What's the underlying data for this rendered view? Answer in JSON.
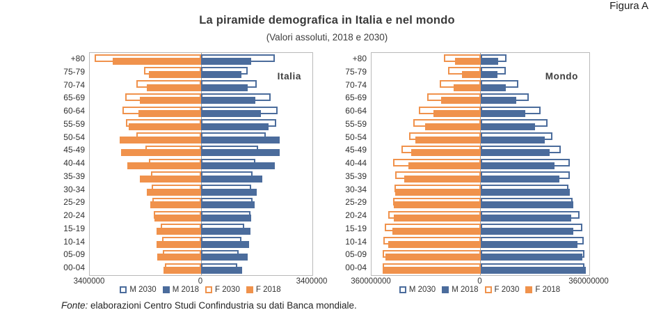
{
  "figure_label": "Figura A",
  "title": "La piramide demografica in Italia e nel mondo",
  "subtitle": "(Valori assoluti, 2018 e 2030)",
  "source": {
    "prefix": "Fonte:",
    "text": " elaborazioni Centro Studi Confindustria su dati Banca mondiale."
  },
  "colors": {
    "male": "#4b6c9c",
    "female": "#f0924c",
    "plot_border": "#b9b9b9",
    "center_axis": "#9d9d9d",
    "text": "#333333"
  },
  "legend": [
    {
      "label": "M 2030",
      "color": "male",
      "fill": "outline"
    },
    {
      "label": "M 2018",
      "color": "male",
      "fill": "solid"
    },
    {
      "label": "F 2030",
      "color": "female",
      "fill": "outline"
    },
    {
      "label": "F 2018",
      "color": "female",
      "fill": "solid"
    }
  ],
  "chart_data": [
    {
      "type": "bar",
      "variant": "population-pyramid",
      "title": "Italia",
      "age_groups": [
        "+80",
        "75-79",
        "70-74",
        "65-69",
        "60-64",
        "55-59",
        "50-54",
        "45-49",
        "40-44",
        "35-39",
        "30-34",
        "25-29",
        "20-24",
        "15-19",
        "10-14",
        "05-09",
        "00-04"
      ],
      "axis_max": 3400000,
      "x_tick_labels": [
        "3400000",
        "0",
        "3400000"
      ],
      "series": [
        {
          "name": "M 2030",
          "side": "right",
          "style": "outline",
          "color": "male",
          "values": [
            2250000,
            1430000,
            1710000,
            2130000,
            2340000,
            2300000,
            1980000,
            1750000,
            1660000,
            1570000,
            1540000,
            1570000,
            1500000,
            1310000,
            1240000,
            1150000,
            1100000
          ]
        },
        {
          "name": "M 2018",
          "side": "right",
          "style": "solid",
          "color": "male",
          "values": [
            1540000,
            1240000,
            1430000,
            1660000,
            1820000,
            2070000,
            2410000,
            2410000,
            2250000,
            1880000,
            1700000,
            1630000,
            1540000,
            1500000,
            1470000,
            1420000,
            1250000
          ]
        },
        {
          "name": "F 2030",
          "side": "left",
          "style": "outline",
          "color": "female",
          "values": [
            3250000,
            1740000,
            1980000,
            2320000,
            2410000,
            2300000,
            1980000,
            1700000,
            1590000,
            1520000,
            1510000,
            1490000,
            1440000,
            1240000,
            1200000,
            1170000,
            1100000
          ]
        },
        {
          "name": "F 2018",
          "side": "left",
          "style": "solid",
          "color": "female",
          "values": [
            2700000,
            1590000,
            1660000,
            1880000,
            1910000,
            2220000,
            2480000,
            2440000,
            2250000,
            1860000,
            1660000,
            1560000,
            1420000,
            1370000,
            1350000,
            1330000,
            1150000
          ]
        }
      ]
    },
    {
      "type": "bar",
      "variant": "population-pyramid",
      "title": "Mondo",
      "age_groups": [
        "+80",
        "75-79",
        "70-74",
        "65-69",
        "60-64",
        "55-59",
        "50-54",
        "45-49",
        "40-44",
        "35-39",
        "30-34",
        "25-29",
        "20-24",
        "15-19",
        "10-14",
        "05-09",
        "00-04"
      ],
      "axis_max": 360000000,
      "x_tick_labels": [
        "360000000",
        "0",
        "360000000"
      ],
      "series": [
        {
          "name": "M 2030",
          "side": "right",
          "style": "outline",
          "color": "male",
          "values": [
            87000000,
            85000000,
            125000000,
            161000000,
            198000000,
            222000000,
            238000000,
            266000000,
            296000000,
            295000000,
            291000000,
            305000000,
            328000000,
            337000000,
            341000000,
            343000000,
            345000000
          ]
        },
        {
          "name": "M 2018",
          "side": "right",
          "style": "solid",
          "color": "male",
          "values": [
            58000000,
            56000000,
            83000000,
            118000000,
            148000000,
            180000000,
            212000000,
            230000000,
            245000000,
            262000000,
            295000000,
            308000000,
            300000000,
            308000000,
            322000000,
            337000000,
            349000000
          ]
        },
        {
          "name": "F 2030",
          "side": "left",
          "style": "outline",
          "color": "female",
          "values": [
            121000000,
            107000000,
            135000000,
            175000000,
            204000000,
            221000000,
            236000000,
            261000000,
            289000000,
            282000000,
            284000000,
            288000000,
            304000000,
            317000000,
            322000000,
            324000000,
            323000000
          ]
        },
        {
          "name": "F 2018",
          "side": "left",
          "style": "solid",
          "color": "female",
          "values": [
            83000000,
            61000000,
            88000000,
            129000000,
            156000000,
            183000000,
            215000000,
            230000000,
            238000000,
            253000000,
            281000000,
            286000000,
            286000000,
            291000000,
            304000000,
            314000000,
            324000000
          ]
        }
      ]
    }
  ]
}
